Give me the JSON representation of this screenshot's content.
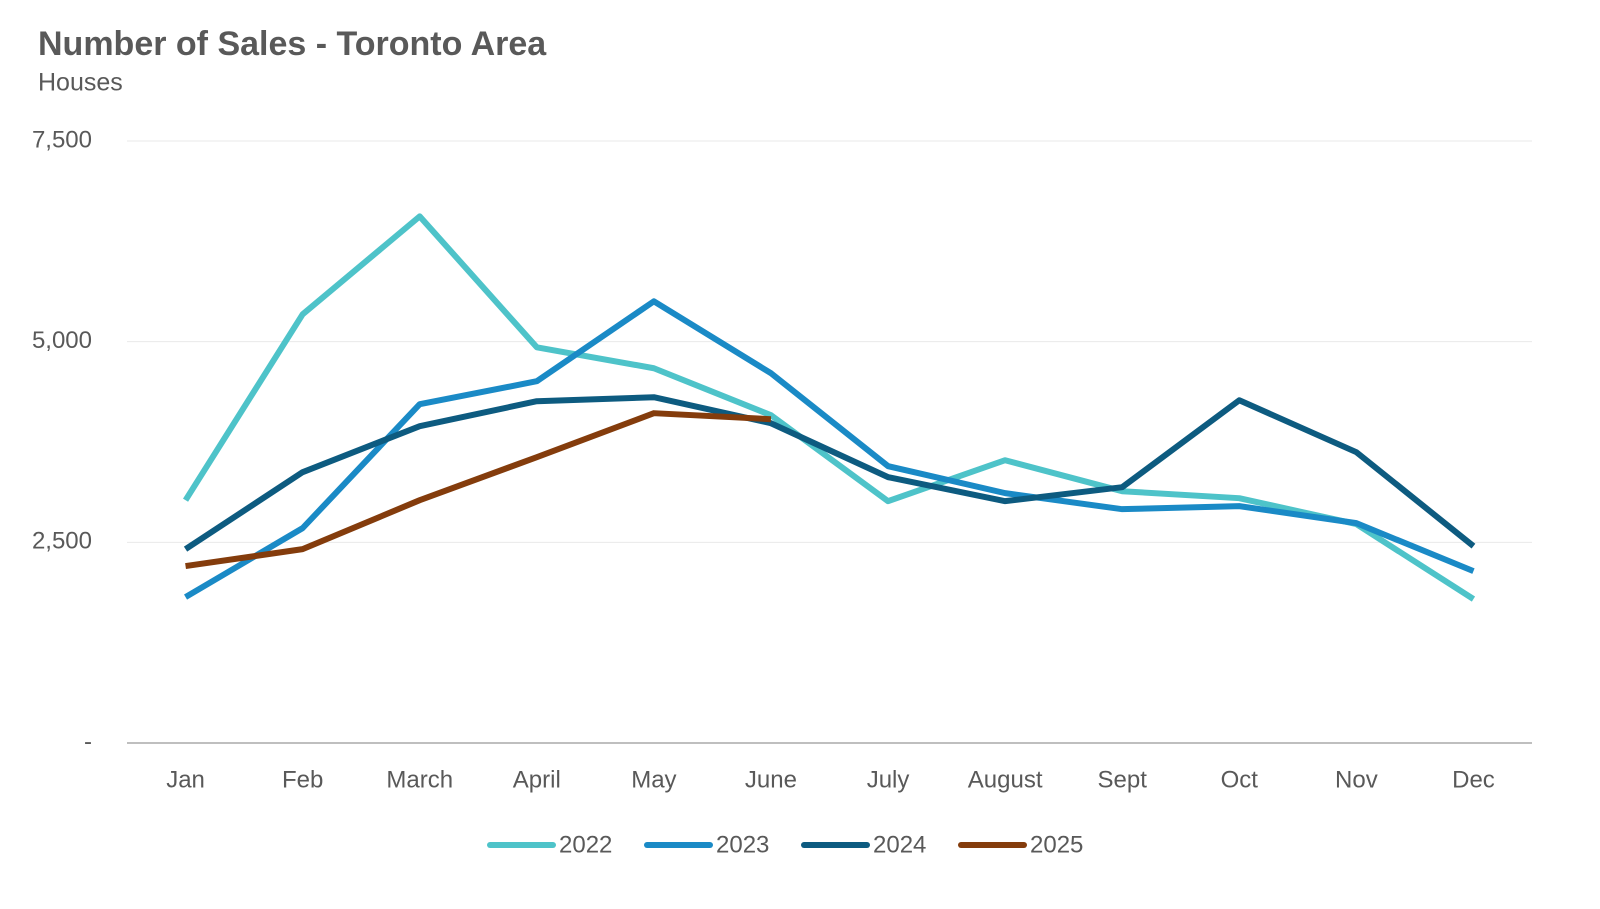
{
  "chart_data": {
    "type": "line",
    "title": "Number of Sales - Toronto Area",
    "subtitle": "Houses",
    "categories": [
      "Jan",
      "Feb",
      "March",
      "April",
      "May",
      "June",
      "July",
      "August",
      "Sept",
      "Oct",
      "Nov",
      "Dec"
    ],
    "series": [
      {
        "name": "2022",
        "color": "#4ec3c9",
        "values": [
          3025,
          5341,
          6561,
          4930,
          4669,
          4084,
          3013,
          3523,
          3137,
          3050,
          2727,
          1793
        ]
      },
      {
        "name": "2023",
        "color": "#1a8ac6",
        "values": [
          1818,
          2677,
          4221,
          4507,
          5503,
          4607,
          3449,
          3113,
          2913,
          2951,
          2739,
          2141
        ]
      },
      {
        "name": "2024",
        "color": "#0d5b80",
        "values": [
          2415,
          3374,
          3947,
          4258,
          4308,
          3984,
          3312,
          3013,
          3187,
          4270,
          3623,
          2453
        ]
      },
      {
        "name": "2025",
        "color": "#843c0c",
        "values": [
          2204,
          2415,
          3025,
          3561,
          4109,
          4034,
          null,
          null,
          null,
          null,
          null,
          null
        ]
      }
    ],
    "ylim": [
      0,
      7500
    ],
    "yticks": [
      {
        "value": 0,
        "label": "-"
      },
      {
        "value": 2500,
        "label": "2,500"
      },
      {
        "value": 5000,
        "label": "5,000"
      },
      {
        "value": 7500,
        "label": "7,500"
      }
    ],
    "grid": true,
    "legend": "bottom"
  }
}
